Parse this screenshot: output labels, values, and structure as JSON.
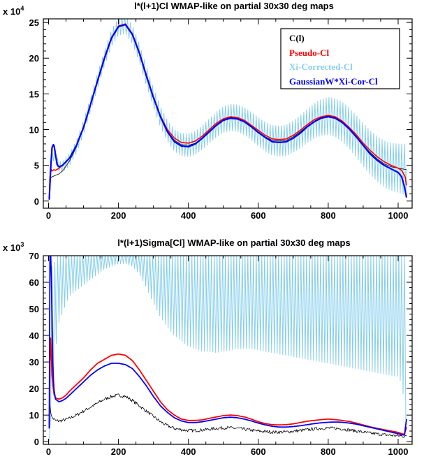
{
  "chart_data": [
    {
      "type": "line",
      "title": "l*(l+1)Cl WMAP-like on partial 30x30 deg maps",
      "y_multiplier": "x 10",
      "y_multiplier_exp": "4",
      "xlim": [
        -15,
        1040
      ],
      "ylim": [
        -1,
        25.5
      ],
      "xticks": [
        0,
        200,
        400,
        600,
        800,
        1000
      ],
      "xtick_labels": [
        "0",
        "200",
        "400",
        "600",
        "800",
        "1000"
      ],
      "yticks": [
        0,
        5,
        10,
        15,
        20,
        25
      ],
      "ytick_labels": [
        "0",
        "5",
        "10",
        "15",
        "20",
        "25"
      ],
      "legend_position": "top-right",
      "series": [
        {
          "name": "C(l)",
          "color": "#000000",
          "stroke_width": 0.8,
          "x": [
            2,
            10,
            20,
            30,
            40,
            60,
            80,
            100,
            120,
            140,
            160,
            180,
            200,
            220,
            240,
            260,
            280,
            300,
            320,
            340,
            360,
            380,
            400,
            420,
            440,
            460,
            480,
            500,
            520,
            540,
            560,
            580,
            600,
            620,
            640,
            660,
            680,
            700,
            720,
            740,
            760,
            780,
            800,
            820,
            840,
            860,
            880,
            900,
            920,
            940,
            960,
            980,
            1000,
            1024
          ],
          "y": [
            3.0,
            3.4,
            3.6,
            3.8,
            4.2,
            5.6,
            7.6,
            10.3,
            13.5,
            16.8,
            20.0,
            22.8,
            24.4,
            24.7,
            23.3,
            20.7,
            17.5,
            14.5,
            11.8,
            9.8,
            8.5,
            7.9,
            7.8,
            8.1,
            8.9,
            9.8,
            10.7,
            11.4,
            11.7,
            11.6,
            11.2,
            10.5,
            9.7,
            9.0,
            8.5,
            8.4,
            8.5,
            9.0,
            9.7,
            10.5,
            11.2,
            11.7,
            11.9,
            11.7,
            11.1,
            10.2,
            9.1,
            7.9,
            6.8,
            5.9,
            5.2,
            4.8,
            4.6,
            4.4
          ]
        },
        {
          "name": "Pseudo-Cl",
          "color": "#ff0000",
          "stroke_width": 1.6,
          "x": [
            2,
            5,
            10,
            15,
            20,
            30,
            40,
            60,
            80,
            100,
            120,
            140,
            160,
            180,
            200,
            220,
            240,
            260,
            280,
            300,
            320,
            340,
            360,
            380,
            400,
            420,
            440,
            460,
            480,
            500,
            520,
            540,
            560,
            580,
            600,
            620,
            640,
            660,
            680,
            700,
            720,
            740,
            760,
            780,
            800,
            820,
            840,
            860,
            880,
            900,
            920,
            940,
            960,
            980,
            1000,
            1010,
            1020,
            1024
          ],
          "y": [
            0.2,
            4.6,
            4.2,
            4.4,
            4.3,
            4.6,
            5.0,
            6.0,
            7.8,
            10.4,
            13.6,
            16.9,
            20.1,
            22.9,
            24.5,
            24.8,
            23.4,
            20.8,
            17.6,
            14.6,
            11.9,
            10.0,
            8.8,
            8.2,
            8.1,
            8.4,
            9.1,
            10.0,
            10.9,
            11.5,
            11.8,
            11.7,
            11.3,
            10.6,
            9.9,
            9.2,
            8.7,
            8.6,
            8.7,
            9.2,
            9.9,
            10.7,
            11.4,
            11.8,
            12.0,
            11.8,
            11.2,
            10.3,
            9.3,
            8.1,
            7.1,
            6.2,
            5.5,
            5.0,
            4.6,
            4.3,
            3.4,
            2.2
          ]
        },
        {
          "name": "Xi-Corrected-Cl",
          "color": "#87ceeb",
          "stroke_width": 1.0,
          "base_x": [
            2,
            10,
            20,
            30,
            40,
            60,
            80,
            100,
            120,
            140,
            160,
            180,
            200,
            220,
            240,
            260,
            280,
            300,
            320,
            340,
            360,
            380,
            400,
            420,
            440,
            460,
            480,
            500,
            520,
            540,
            560,
            580,
            600,
            620,
            640,
            660,
            680,
            700,
            720,
            740,
            760,
            780,
            800,
            820,
            840,
            860,
            880,
            900,
            920,
            940,
            960,
            980,
            1000,
            1024
          ],
          "base_y": [
            0.5,
            6.5,
            6.0,
            4.8,
            4.8,
            5.8,
            7.6,
            10.3,
            13.5,
            16.8,
            20.0,
            22.8,
            24.4,
            24.7,
            23.3,
            20.7,
            17.5,
            14.5,
            11.8,
            9.8,
            8.5,
            7.9,
            7.8,
            8.1,
            8.9,
            9.8,
            10.7,
            11.4,
            11.7,
            11.6,
            11.2,
            10.5,
            9.7,
            9.0,
            8.5,
            8.4,
            8.5,
            9.0,
            9.7,
            10.5,
            11.2,
            11.7,
            11.9,
            11.7,
            11.1,
            10.2,
            9.1,
            7.9,
            6.8,
            5.9,
            5.2,
            4.8,
            4.6,
            4.4
          ],
          "oscillation_period": 8,
          "amplitude_x": [
            2,
            100,
            200,
            300,
            400,
            500,
            600,
            700,
            800,
            900,
            1000,
            1024
          ],
          "amplitude_y": [
            0.6,
            1.0,
            1.2,
            1.4,
            1.6,
            1.8,
            2.0,
            2.2,
            2.6,
            3.0,
            3.4,
            3.6
          ]
        },
        {
          "name": "GaussianW*Xi-Cor-Cl",
          "color": "#0000ff",
          "stroke_width": 2.2,
          "x": [
            2,
            6,
            10,
            15,
            20,
            25,
            30,
            40,
            60,
            80,
            100,
            120,
            140,
            160,
            180,
            200,
            220,
            240,
            260,
            280,
            300,
            320,
            340,
            360,
            380,
            400,
            420,
            440,
            460,
            480,
            500,
            520,
            540,
            560,
            580,
            600,
            620,
            640,
            660,
            680,
            700,
            720,
            740,
            760,
            780,
            800,
            820,
            840,
            860,
            880,
            900,
            920,
            940,
            960,
            980,
            1000,
            1010,
            1018,
            1024
          ],
          "y": [
            0.2,
            4.5,
            7.5,
            8.0,
            6.5,
            5.0,
            4.8,
            5.0,
            6.0,
            7.8,
            10.3,
            13.5,
            16.8,
            20.0,
            22.8,
            24.4,
            24.7,
            23.3,
            20.7,
            17.5,
            14.5,
            11.8,
            9.7,
            8.3,
            7.7,
            7.6,
            8.0,
            8.8,
            9.7,
            10.6,
            11.3,
            11.6,
            11.5,
            11.1,
            10.4,
            9.6,
            8.9,
            8.3,
            8.2,
            8.3,
            8.8,
            9.5,
            10.4,
            11.1,
            11.6,
            11.8,
            11.6,
            11.0,
            10.1,
            9.0,
            7.8,
            6.6,
            5.7,
            5.0,
            4.5,
            4.0,
            3.4,
            2.0,
            0.5
          ]
        }
      ]
    },
    {
      "type": "line",
      "title": "l*(l+1)Sigma[Cl] WMAP-like on partial 30x30 deg maps",
      "y_multiplier": "x 10",
      "y_multiplier_exp": "3",
      "xlim": [
        -15,
        1040
      ],
      "ylim": [
        -1,
        70
      ],
      "xticks": [
        0,
        200,
        400,
        600,
        800,
        1000
      ],
      "xtick_labels": [
        "0",
        "200",
        "400",
        "600",
        "800",
        "1000"
      ],
      "yticks": [
        0,
        10,
        20,
        30,
        40,
        50,
        60,
        70
      ],
      "ytick_labels": [
        "0",
        "10",
        "20",
        "30",
        "40",
        "50",
        "60",
        "70"
      ],
      "series": [
        {
          "name": "C(l)",
          "color": "#000000",
          "stroke_width": 0.8,
          "jitter": 0.6,
          "x": [
            2,
            5,
            10,
            15,
            20,
            30,
            40,
            60,
            80,
            100,
            120,
            140,
            160,
            180,
            200,
            220,
            240,
            260,
            280,
            300,
            320,
            340,
            360,
            380,
            400,
            420,
            440,
            460,
            480,
            500,
            520,
            540,
            560,
            580,
            600,
            620,
            640,
            660,
            680,
            700,
            720,
            740,
            760,
            780,
            800,
            820,
            840,
            860,
            880,
            900,
            920,
            940,
            960,
            980,
            1000,
            1024
          ],
          "y": [
            15,
            12,
            9,
            8.5,
            8,
            7.8,
            8,
            8.8,
            10,
            11.5,
            13,
            14.5,
            16,
            17,
            17.5,
            17,
            15.5,
            13.5,
            11.5,
            9.5,
            7.5,
            6,
            5,
            4.5,
            4.2,
            4.2,
            4.4,
            4.7,
            5,
            5.2,
            5.2,
            5,
            4.7,
            4.3,
            4,
            3.8,
            3.6,
            3.6,
            3.7,
            3.9,
            4.2,
            4.5,
            4.8,
            5,
            5.1,
            5,
            4.8,
            4.4,
            4,
            3.6,
            3.2,
            2.9,
            2.6,
            2.4,
            2.2,
            2
          ]
        },
        {
          "name": "Pseudo-Cl",
          "color": "#ff0000",
          "stroke_width": 1.8,
          "x": [
            2,
            4,
            6,
            8,
            10,
            15,
            20,
            30,
            40,
            50,
            60,
            80,
            100,
            120,
            140,
            160,
            180,
            200,
            220,
            240,
            260,
            280,
            300,
            320,
            340,
            360,
            380,
            400,
            420,
            440,
            460,
            480,
            500,
            520,
            540,
            560,
            580,
            600,
            620,
            640,
            660,
            680,
            700,
            720,
            740,
            760,
            780,
            800,
            820,
            840,
            860,
            880,
            900,
            920,
            940,
            960,
            980,
            1000,
            1010,
            1018,
            1024
          ],
          "y": [
            5,
            30,
            39,
            32,
            25,
            18,
            16.5,
            16,
            16.5,
            17.5,
            19,
            21.5,
            24,
            27,
            29.5,
            31,
            32.5,
            33,
            32.5,
            30.5,
            27,
            23,
            19,
            15,
            12,
            10,
            8.5,
            8,
            8,
            8.2,
            8.8,
            9.3,
            9.8,
            10,
            9.8,
            9.3,
            8.5,
            7.5,
            6.8,
            6.4,
            6.3,
            6.4,
            6.7,
            7.2,
            7.7,
            8,
            8.3,
            8.5,
            8.3,
            8,
            7.6,
            7,
            6.3,
            5.6,
            5,
            4.5,
            4,
            3.5,
            3,
            2.8,
            5.5
          ]
        },
        {
          "name": "Xi-Corrected-Cl",
          "color": "#87ceeb",
          "stroke_width": 1.0,
          "period": 8,
          "top_x": [
            2,
            10,
            20,
            30,
            60,
            80,
            100,
            130,
            170,
            200,
            250,
            270,
            1024
          ],
          "top_y": [
            0,
            66,
            68,
            71,
            71,
            71,
            71,
            71,
            71,
            71,
            71,
            71,
            71
          ],
          "bottom_x": [
            2,
            10,
            20,
            30,
            50,
            60,
            80,
            100,
            120,
            140,
            160,
            180,
            200,
            220,
            240,
            260,
            280,
            300,
            320,
            340,
            360,
            380,
            400,
            420,
            440,
            460,
            480,
            500,
            520,
            540,
            560,
            580,
            600,
            620,
            640,
            660,
            680,
            700,
            720,
            740,
            760,
            780,
            800,
            820,
            840,
            860,
            880,
            900,
            920,
            940,
            960,
            980,
            1000,
            1010,
            1018,
            1024
          ],
          "bottom_y": [
            0,
            20,
            35,
            45,
            52,
            55,
            57,
            59,
            61,
            63,
            65,
            66,
            67,
            67,
            66,
            63,
            58,
            52,
            47,
            43,
            40,
            38,
            36,
            35,
            34,
            34,
            33.5,
            34,
            34.5,
            35,
            35,
            35,
            34.5,
            34,
            33.5,
            33,
            32.5,
            32,
            31.5,
            31,
            30.5,
            30,
            29.5,
            29,
            28.5,
            28,
            27.5,
            27,
            26.5,
            26,
            25.5,
            25,
            24.5,
            22,
            14,
            5
          ]
        },
        {
          "name": "GaussianW*Xi-Cor-Cl",
          "color": "#0000ff",
          "stroke_width": 1.8,
          "x": [
            2,
            3,
            4,
            5,
            6,
            8,
            10,
            12,
            15,
            20,
            30,
            40,
            50,
            60,
            80,
            100,
            120,
            140,
            160,
            180,
            200,
            220,
            240,
            260,
            280,
            300,
            320,
            340,
            360,
            380,
            400,
            420,
            440,
            460,
            480,
            500,
            520,
            540,
            560,
            580,
            600,
            620,
            640,
            660,
            680,
            700,
            720,
            740,
            760,
            780,
            800,
            820,
            840,
            860,
            880,
            900,
            920,
            940,
            960,
            980,
            1000,
            1010,
            1018,
            1024
          ],
          "y": [
            5,
            40,
            70,
            71,
            71,
            62,
            45,
            30,
            20,
            16,
            15,
            15.5,
            16.3,
            17.5,
            20,
            22.5,
            25,
            27,
            28.5,
            29.5,
            29.5,
            29,
            27.5,
            24.5,
            21,
            17,
            13.5,
            11,
            9,
            7.8,
            7.2,
            7.2,
            7.5,
            8,
            8.5,
            9,
            9.2,
            9,
            8.5,
            7.8,
            7,
            6.3,
            5.8,
            5.5,
            5.5,
            5.7,
            6,
            6.4,
            6.8,
            7.1,
            7.3,
            7.4,
            7.3,
            7,
            6.6,
            6,
            5.4,
            4.8,
            4.2,
            3.6,
            3,
            2.6,
            2.5,
            8.5
          ]
        }
      ]
    }
  ]
}
